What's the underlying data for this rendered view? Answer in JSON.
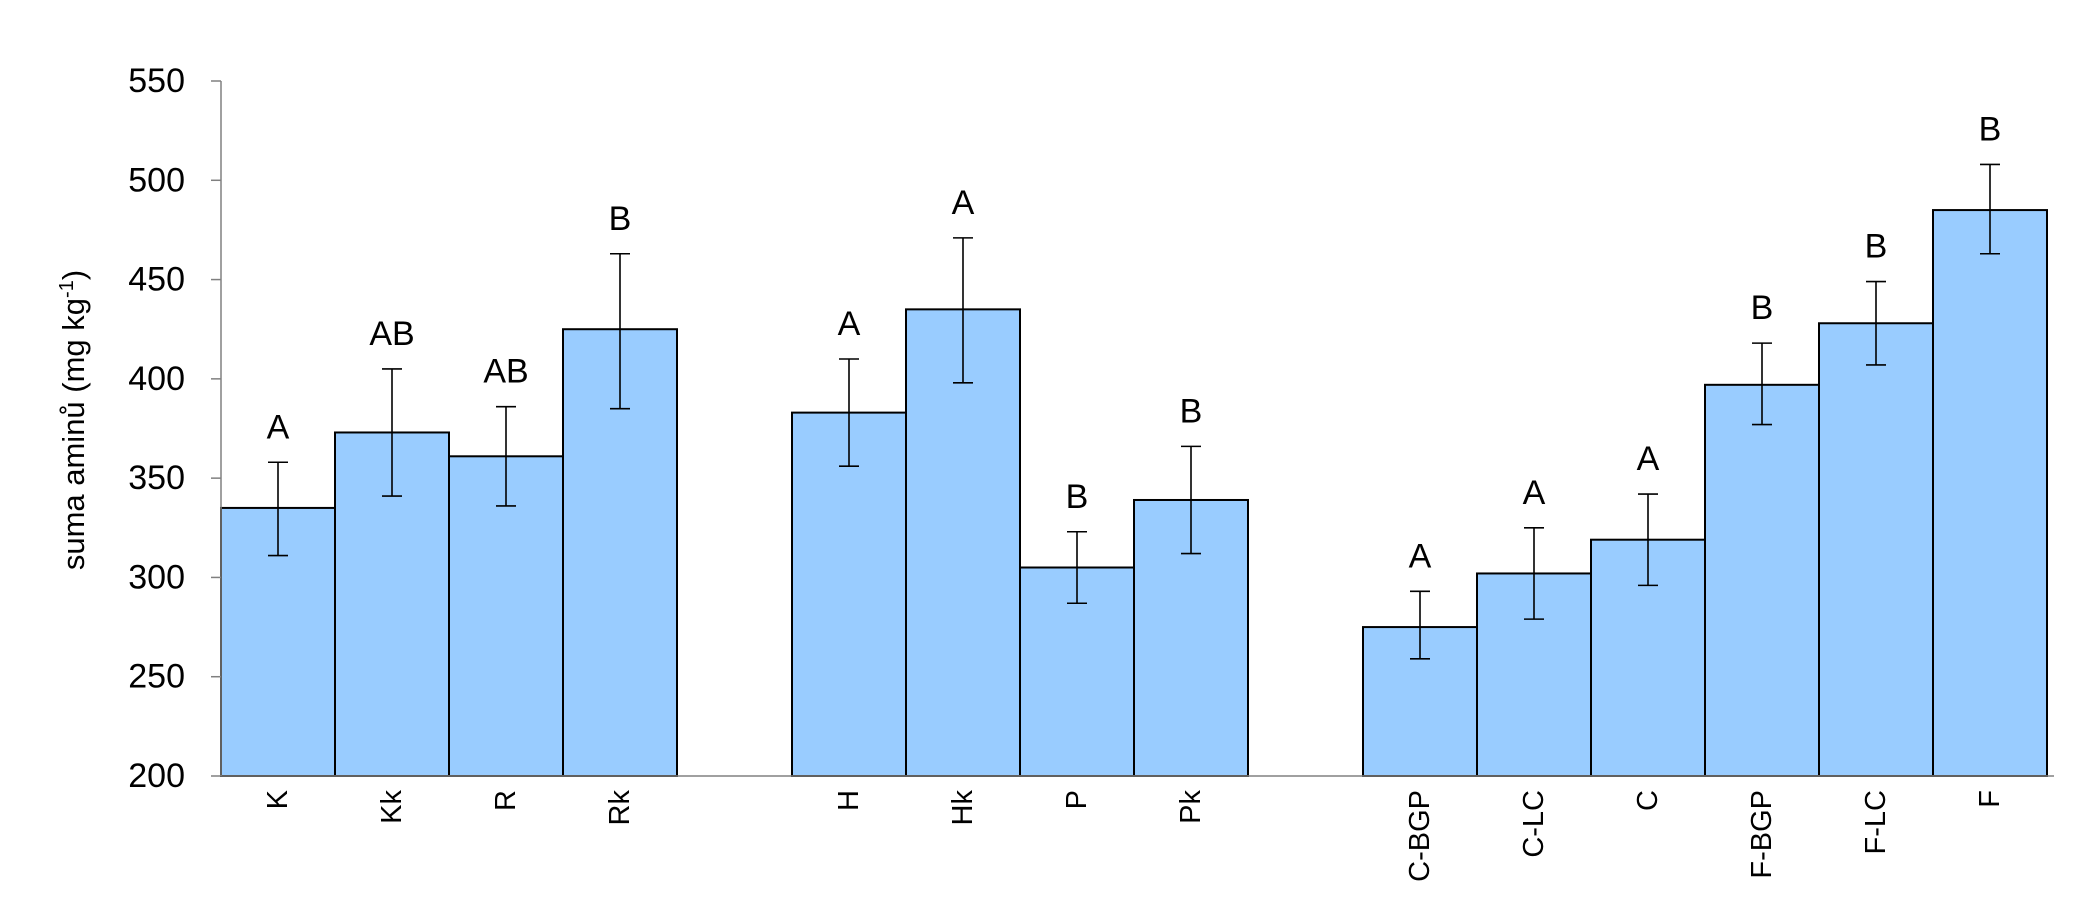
{
  "chart_data": {
    "type": "bar",
    "title": "",
    "xlabel": "",
    "ylabel": {
      "main": "suma aminů (mg kg",
      "superscript": "-1",
      "close": ")"
    },
    "ylim": [
      200,
      550
    ],
    "yticks": [
      "200",
      "250",
      "300",
      "350",
      "400",
      "450",
      "500",
      "550"
    ],
    "grid": false,
    "legend": "none",
    "colors": {
      "bar_fill": "#99CCFF",
      "bar_stroke": "#000000",
      "axis": "#808080",
      "error_bar": "#000000"
    },
    "groups": [
      {
        "bars": [
          {
            "label": "K",
            "value": 335,
            "err_low": 311,
            "err_high": 358,
            "sig": "A"
          },
          {
            "label": "Kk",
            "value": 373,
            "err_low": 341,
            "err_high": 405,
            "sig": "AB"
          },
          {
            "label": "R",
            "value": 361,
            "err_low": 336,
            "err_high": 386,
            "sig": "AB"
          },
          {
            "label": "Rk",
            "value": 425,
            "err_low": 385,
            "err_high": 463,
            "sig": "B"
          }
        ]
      },
      {
        "bars": [
          {
            "label": "H",
            "value": 383,
            "err_low": 356,
            "err_high": 410,
            "sig": "A"
          },
          {
            "label": "Hk",
            "value": 435,
            "err_low": 398,
            "err_high": 471,
            "sig": "A"
          },
          {
            "label": "P",
            "value": 305,
            "err_low": 287,
            "err_high": 323,
            "sig": "B"
          },
          {
            "label": "Pk",
            "value": 339,
            "err_low": 312,
            "err_high": 366,
            "sig": "B"
          }
        ]
      },
      {
        "bars": [
          {
            "label": "C-BGP",
            "value": 275,
            "err_low": 259,
            "err_high": 293,
            "sig": "A"
          },
          {
            "label": "C-LC",
            "value": 302,
            "err_low": 279,
            "err_high": 325,
            "sig": "A"
          },
          {
            "label": "C",
            "value": 319,
            "err_low": 296,
            "err_high": 342,
            "sig": "A"
          },
          {
            "label": "F-BGP",
            "value": 397,
            "err_low": 377,
            "err_high": 418,
            "sig": "B"
          },
          {
            "label": "F-LC",
            "value": 428,
            "err_low": 407,
            "err_high": 449,
            "sig": "B"
          },
          {
            "label": "F",
            "value": 485,
            "err_low": 463,
            "err_high": 508,
            "sig": "B"
          }
        ]
      }
    ]
  }
}
